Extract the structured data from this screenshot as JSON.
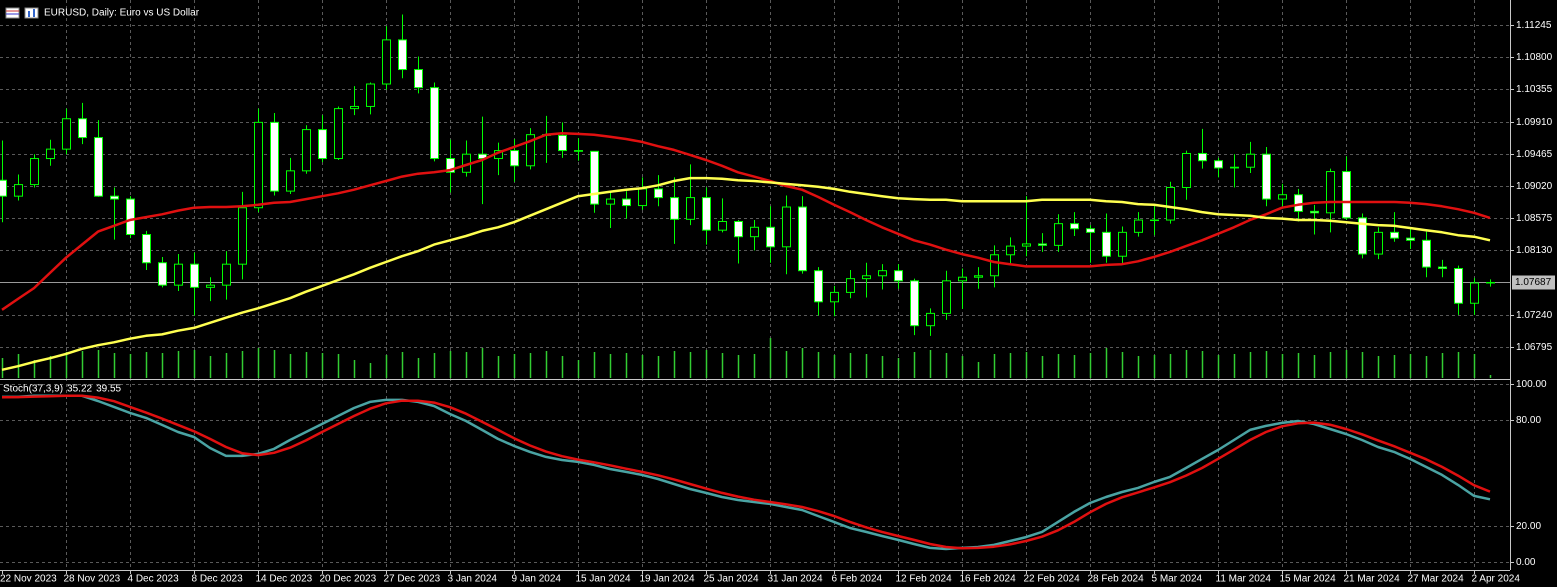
{
  "chart_data": [
    {
      "type": "candlestick",
      "title": "EURUSD, Daily:  Euro vs US Dollar",
      "categories": [
        "22 Nov 2023",
        null,
        null,
        null,
        "28 Nov 2023",
        null,
        null,
        null,
        "4 Dec 2023",
        null,
        null,
        null,
        "8 Dec 2023",
        null,
        null,
        null,
        "14 Dec 2023",
        null,
        null,
        null,
        "20 Dec 2023",
        null,
        null,
        null,
        "27 Dec 2023",
        null,
        null,
        null,
        "3 Jan 2024",
        null,
        null,
        null,
        "9 Jan 2024",
        null,
        null,
        null,
        "15 Jan 2024",
        null,
        null,
        null,
        "19 Jan 2024",
        null,
        null,
        null,
        "25 Jan 2024",
        null,
        null,
        null,
        "31 Jan 2024",
        null,
        null,
        null,
        "6 Feb 2024",
        null,
        null,
        null,
        "12 Feb 2024",
        null,
        null,
        null,
        "16 Feb 2024",
        null,
        null,
        null,
        "22 Feb 2024",
        null,
        null,
        null,
        "28 Feb 2024",
        null,
        null,
        null,
        "5 Mar 2024",
        null,
        null,
        null,
        "11 Mar 2024",
        null,
        null,
        null,
        "15 Mar 2024",
        null,
        null,
        null,
        "21 Mar 2024",
        null,
        null,
        null,
        "27 Mar 2024",
        null,
        null,
        null,
        "2 Apr 2024",
        null
      ],
      "open": [
        1.091,
        1.0888,
        1.0904,
        1.094,
        1.0953,
        1.0995,
        1.0969,
        1.0888,
        1.0884,
        1.0835,
        1.0796,
        1.0765,
        1.0794,
        1.0762,
        1.0765,
        1.0794,
        1.0872,
        1.099,
        1.0895,
        1.0923,
        1.098,
        1.094,
        1.1009,
        1.1012,
        1.1043,
        1.1104,
        1.1063,
        1.1038,
        1.094,
        1.0921,
        1.0946,
        1.094,
        1.0951,
        1.093,
        1.0973,
        1.0972,
        1.0951,
        1.095,
        1.0877,
        1.0884,
        1.0875,
        1.0898,
        1.0886,
        1.0856,
        1.0886,
        1.0841,
        1.0853,
        1.0832,
        1.0845,
        1.0818,
        1.0873,
        1.0785,
        1.0742,
        1.0755,
        1.0774,
        1.0778,
        1.0785,
        1.0771,
        1.0709,
        1.0726,
        1.0771,
        1.0776,
        1.0778,
        1.0807,
        1.0819,
        1.0822,
        1.082,
        1.085,
        1.0843,
        1.0838,
        1.0805,
        1.0838,
        1.0855,
        1.0855,
        1.09,
        1.0947,
        1.0937,
        1.0927,
        1.0928,
        1.0946,
        1.0884,
        1.089,
        1.0867,
        1.0865,
        1.0922,
        1.0858,
        1.0808,
        1.0838,
        1.083,
        1.0827,
        1.079,
        1.0788,
        1.074,
        1.0768
      ],
      "high": [
        1.0965,
        1.0918,
        1.0946,
        1.0966,
        1.1009,
        1.1017,
        1.0993,
        1.09,
        1.0888,
        1.084,
        1.0804,
        1.0808,
        1.081,
        1.0776,
        1.0812,
        1.0894,
        1.1009,
        1.1003,
        1.0941,
        1.0986,
        1.1,
        1.1012,
        1.104,
        1.1045,
        1.1123,
        1.1139,
        1.1081,
        1.1045,
        1.0966,
        1.0965,
        1.0998,
        1.0962,
        1.0967,
        1.0982,
        1.0999,
        1.099,
        1.0968,
        1.095,
        1.0893,
        1.0895,
        1.0914,
        1.0917,
        1.0914,
        1.0932,
        1.09,
        1.0885,
        1.0855,
        1.0855,
        1.0874,
        1.0889,
        1.0888,
        1.079,
        1.0764,
        1.0786,
        1.0796,
        1.0794,
        1.0794,
        1.0774,
        1.0733,
        1.0785,
        1.0788,
        1.079,
        1.082,
        1.0831,
        1.0888,
        1.0837,
        1.0863,
        1.0866,
        1.0848,
        1.0864,
        1.0846,
        1.0866,
        1.0874,
        1.0908,
        1.0951,
        1.0981,
        1.0941,
        1.0946,
        1.0963,
        1.0956,
        1.0905,
        1.0898,
        1.0876,
        1.0926,
        1.0943,
        1.0864,
        1.0845,
        1.0866,
        1.0843,
        1.0839,
        1.08,
        1.0792,
        1.0775,
        1.0773
      ],
      "low": [
        1.0852,
        1.0882,
        1.09,
        1.093,
        1.0946,
        1.096,
        1.0887,
        1.0828,
        1.083,
        1.0786,
        1.0762,
        1.0757,
        1.0723,
        1.0743,
        1.0745,
        1.0773,
        1.0866,
        1.0889,
        1.0891,
        1.0919,
        1.0935,
        1.0938,
        1.1,
        1.1001,
        1.1035,
        1.1051,
        1.103,
        1.0936,
        1.0893,
        1.0915,
        1.0877,
        1.0917,
        1.0908,
        1.0925,
        1.0934,
        1.0941,
        1.0937,
        1.0865,
        1.0844,
        1.0857,
        1.0869,
        1.0874,
        1.0822,
        1.0848,
        1.0821,
        1.0838,
        1.0795,
        1.0813,
        1.0796,
        1.078,
        1.0781,
        1.0723,
        1.0722,
        1.0747,
        1.0748,
        1.0759,
        1.076,
        1.0696,
        1.0695,
        1.0717,
        1.0732,
        1.076,
        1.0762,
        1.0794,
        1.0805,
        1.0811,
        1.0811,
        1.0833,
        1.0796,
        1.0796,
        1.0793,
        1.0832,
        1.0834,
        1.085,
        1.0883,
        1.0926,
        1.0914,
        1.09,
        1.092,
        1.0874,
        1.0874,
        1.0853,
        1.0835,
        1.0838,
        1.0855,
        1.0802,
        1.0801,
        1.0825,
        1.0815,
        1.0776,
        1.0776,
        1.0724,
        1.0724,
        1.0763
      ],
      "close": [
        1.0888,
        1.0904,
        1.094,
        1.0953,
        1.0995,
        1.0969,
        1.0888,
        1.0884,
        1.0835,
        1.0796,
        1.0765,
        1.0794,
        1.0762,
        1.0765,
        1.0794,
        1.0872,
        1.099,
        1.0895,
        1.0923,
        1.098,
        1.094,
        1.1009,
        1.1012,
        1.1043,
        1.1104,
        1.1063,
        1.1038,
        1.094,
        1.0921,
        1.0946,
        1.094,
        1.0951,
        1.093,
        1.0973,
        1.0972,
        1.0951,
        1.095,
        1.0877,
        1.0884,
        1.0875,
        1.0898,
        1.0886,
        1.0856,
        1.0886,
        1.0841,
        1.0853,
        1.0832,
        1.0845,
        1.0818,
        1.0873,
        1.0785,
        1.0742,
        1.0755,
        1.0774,
        1.0778,
        1.0785,
        1.0771,
        1.0709,
        1.0726,
        1.0771,
        1.0776,
        1.0778,
        1.0807,
        1.0819,
        1.0822,
        1.082,
        1.085,
        1.0843,
        1.0838,
        1.0805,
        1.0838,
        1.0855,
        1.0855,
        1.09,
        1.0947,
        1.0937,
        1.0927,
        1.0928,
        1.0946,
        1.0884,
        1.089,
        1.0867,
        1.0865,
        1.0922,
        1.0858,
        1.0808,
        1.0838,
        1.083,
        1.0827,
        1.079,
        1.0788,
        1.074,
        1.0768,
        1.07687
      ],
      "overlays": [
        {
          "color": "#e01010",
          "values": [
            1.0731,
            1.0746,
            1.0761,
            1.0782,
            1.0803,
            1.0821,
            1.0839,
            1.0847,
            1.0855,
            1.0859,
            1.0863,
            1.0868,
            1.0872,
            1.0873,
            1.0873,
            1.0874,
            1.0876,
            1.0879,
            1.088,
            1.0884,
            1.0888,
            1.0892,
            1.0897,
            1.0903,
            1.0909,
            1.0915,
            1.0919,
            1.0921,
            1.0924,
            1.0931,
            1.0938,
            1.0948,
            1.0956,
            1.0964,
            1.0973,
            1.0975,
            1.0974,
            1.0973,
            1.097,
            1.0967,
            1.0963,
            1.0957,
            1.0952,
            1.0945,
            1.0938,
            1.093,
            1.0921,
            1.0915,
            1.0909,
            1.0902,
            1.0897,
            1.0887,
            1.0876,
            1.0866,
            1.0855,
            1.0845,
            1.0836,
            1.0827,
            1.0821,
            1.0814,
            1.0808,
            1.0803,
            1.0797,
            1.0794,
            1.0791,
            1.0791,
            1.0791,
            1.0791,
            1.0791,
            1.0793,
            1.0794,
            1.0798,
            1.0804,
            1.0811,
            1.0819,
            1.0827,
            1.0836,
            1.0845,
            1.0855,
            1.0863,
            1.0872,
            1.0876,
            1.0879,
            1.088,
            1.088,
            1.088,
            1.088,
            1.088,
            1.0879,
            1.0877,
            1.0874,
            1.087,
            1.0865,
            1.0858
          ]
        },
        {
          "color": "#ffff50",
          "values": [
            1.0648,
            1.0653,
            1.0659,
            1.0664,
            1.067,
            1.0677,
            1.0682,
            1.0686,
            1.0691,
            1.0695,
            1.0697,
            1.0702,
            1.0706,
            1.0713,
            1.072,
            1.0727,
            1.0733,
            1.074,
            1.0747,
            1.0756,
            1.0764,
            1.0772,
            1.078,
            1.0789,
            1.0797,
            1.0805,
            1.0812,
            1.0821,
            1.0827,
            1.0833,
            1.084,
            1.0845,
            1.0852,
            1.0861,
            1.087,
            1.0879,
            1.0888,
            1.0891,
            1.0894,
            1.0897,
            1.0899,
            1.0903,
            1.0909,
            1.0913,
            1.0913,
            1.0912,
            1.091,
            1.0909,
            1.0907,
            1.0905,
            1.0903,
            1.0901,
            1.0898,
            1.0894,
            1.0891,
            1.0888,
            1.0885,
            1.0884,
            1.0883,
            1.0883,
            1.0881,
            1.0881,
            1.0881,
            1.0881,
            1.0881,
            1.0883,
            1.0883,
            1.0883,
            1.0883,
            1.0881,
            1.088,
            1.0877,
            1.0876,
            1.0873,
            1.087,
            1.0866,
            1.0863,
            1.0862,
            1.0861,
            1.0858,
            1.0857,
            1.0855,
            1.0855,
            1.0854,
            1.0852,
            1.085,
            1.0848,
            1.0847,
            1.0844,
            1.0841,
            1.0838,
            1.0834,
            1.0832,
            1.0827
          ]
        }
      ],
      "volume": {
        "color": "#32cd32",
        "values": [
          20,
          24,
          18,
          22,
          26,
          27,
          28,
          25,
          24,
          26,
          25,
          27,
          28,
          22,
          25,
          27,
          30,
          28,
          24,
          26,
          25,
          24,
          18,
          15,
          23,
          26,
          20,
          25,
          27,
          26,
          30,
          22,
          24,
          25,
          27,
          22,
          18,
          26,
          24,
          25,
          23,
          22,
          27,
          26,
          28,
          25,
          23,
          24,
          40,
          27,
          30,
          26,
          23,
          25,
          24,
          22,
          20,
          26,
          28,
          25,
          22,
          16,
          24,
          25,
          26,
          22,
          24,
          23,
          25,
          30,
          26,
          22,
          23,
          24,
          28,
          27,
          23,
          24,
          26,
          27,
          24,
          25,
          23,
          26,
          28,
          26,
          22,
          23,
          24,
          22,
          25,
          26,
          24,
          3
        ]
      },
      "candle_color": "#00ff00",
      "bull_fill": "#000000",
      "bear_fill": "#ffffff",
      "ylim": [
        1.06367,
        1.11591
      ],
      "yticks": [
        {
          "value": 1.11245,
          "label": "1.11245"
        },
        {
          "value": 1.108,
          "label": "1.10800"
        },
        {
          "value": 1.10355,
          "label": "1.10355"
        },
        {
          "value": 1.0991,
          "label": "1.09910"
        },
        {
          "value": 1.09465,
          "label": "1.09465"
        },
        {
          "value": 1.0902,
          "label": "1.09020"
        },
        {
          "value": 1.08575,
          "label": "1.08575"
        },
        {
          "value": 1.0813,
          "label": "1.08130"
        },
        {
          "value": 1.0724,
          "label": "1.07240"
        },
        {
          "value": 1.06795,
          "label": "1.06795"
        }
      ],
      "grid": true
    },
    {
      "type": "line",
      "title": "Stoch(37,3,9)",
      "series": [
        {
          "color": "#4aa3a3",
          "values": [
            92.7,
            92.7,
            93.3,
            93.3,
            93.3,
            93.3,
            90.4,
            87.1,
            83.7,
            80.9,
            77.0,
            73.0,
            70.2,
            64.0,
            59.6,
            59.6,
            60.7,
            63.5,
            68.5,
            73.0,
            77.5,
            82.0,
            86.5,
            89.9,
            91.0,
            91.0,
            89.9,
            87.6,
            83.1,
            79.2,
            74.2,
            69.1,
            65.2,
            61.8,
            59.0,
            57.3,
            56.2,
            54.5,
            52.2,
            50.6,
            48.9,
            46.6,
            43.8,
            41.0,
            38.8,
            36.5,
            34.8,
            33.7,
            32.6,
            30.9,
            29.2,
            25.8,
            22.5,
            19.1,
            16.9,
            14.6,
            12.4,
            10.1,
            7.9,
            7.3,
            7.9,
            8.4,
            9.6,
            11.8,
            14.0,
            16.9,
            22.5,
            28.1,
            33.1,
            36.5,
            39.3,
            41.6,
            44.9,
            47.8,
            52.8,
            57.9,
            62.9,
            68.5,
            74.2,
            76.4,
            78.1,
            79.2,
            77.5,
            74.7,
            71.9,
            68.5,
            64.6,
            61.8,
            57.9,
            53.4,
            48.9,
            43.3,
            37.1,
            35.22
          ]
        },
        {
          "color": "#e01010",
          "values": [
            92.5,
            92.6,
            92.9,
            93.1,
            93.3,
            93.3,
            92.3,
            90.3,
            87.1,
            83.9,
            80.5,
            77.0,
            73.4,
            69.1,
            64.6,
            61.1,
            60.0,
            61.3,
            64.2,
            68.3,
            73.0,
            77.5,
            82.0,
            86.1,
            89.1,
            90.6,
            90.6,
            89.5,
            86.9,
            83.3,
            78.8,
            74.2,
            69.5,
            65.4,
            62.0,
            59.4,
            57.5,
            56.0,
            54.3,
            52.4,
            50.6,
            48.7,
            46.4,
            43.8,
            41.2,
            38.8,
            36.7,
            35.0,
            33.7,
            32.4,
            30.9,
            28.6,
            25.8,
            22.5,
            19.5,
            16.9,
            14.6,
            12.4,
            10.1,
            8.4,
            7.7,
            7.9,
            8.6,
            9.9,
            11.8,
            14.2,
            17.8,
            22.5,
            27.9,
            32.6,
            36.3,
            39.1,
            41.9,
            44.8,
            48.5,
            52.8,
            57.9,
            63.1,
            68.5,
            73.0,
            76.2,
            77.9,
            78.3,
            77.1,
            74.7,
            71.7,
            68.3,
            65.0,
            61.4,
            57.7,
            53.4,
            48.5,
            43.1,
            39.55
          ]
        }
      ],
      "ylim": [
        -4.5,
        102.2
      ],
      "yticks": [
        {
          "value": 100,
          "label": "100.00"
        },
        {
          "value": 80,
          "label": "80.00"
        },
        {
          "value": 20,
          "label": "20.00"
        },
        {
          "value": 0,
          "label": "0.00"
        }
      ],
      "grid": true
    }
  ]
}
